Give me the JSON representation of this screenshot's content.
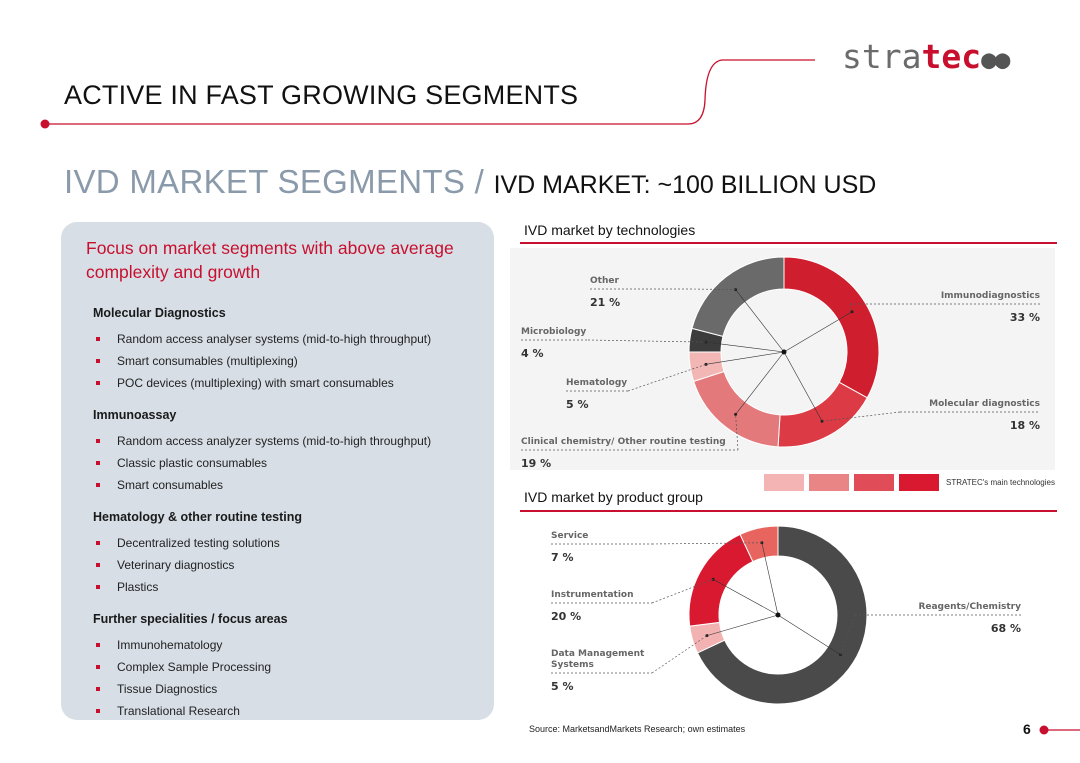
{
  "header": {
    "logo_main": "stra",
    "logo_accent": "tec",
    "logo_dots": "●●",
    "title": "ACTIVE IN FAST GROWING SEGMENTS"
  },
  "subtitle": {
    "part1": "IVD MARKET SEGMENTS / ",
    "part2": "IVD MARKET:  ~100 BILLION USD"
  },
  "panel": {
    "focus": "Focus on market segments with above average complexity and growth",
    "sections": [
      {
        "title": "Molecular Diagnostics",
        "items": [
          "Random access analyser systems (mid-to-high throughput)",
          "Smart consumables (multiplexing)",
          "POC devices (multiplexing) with smart consumables"
        ]
      },
      {
        "title": "Immunoassay",
        "items": [
          "Random access analyzer systems (mid-to-high throughput)",
          "Classic plastic consumables",
          "Smart consumables"
        ]
      },
      {
        "title": "Hematology & other routine testing",
        "items": [
          "Decentralized testing solutions",
          "Veterinary diagnostics",
          "Plastics"
        ]
      },
      {
        "title": "Further specialities / focus areas",
        "items": [
          "Immunohematology",
          "Complex Sample Processing",
          "Tissue Diagnostics",
          "Translational Research"
        ]
      }
    ]
  },
  "chart_data": [
    {
      "type": "pie",
      "title": "IVD market by technologies",
      "series": [
        {
          "name": "Immunodiagnostics",
          "value": 33,
          "label": "33 %",
          "color": "#cf1f2e"
        },
        {
          "name": "Molecular diagnostics",
          "value": 18,
          "label": "18 %",
          "color": "#dc3a44"
        },
        {
          "name": "Clinical chemistry/ Other routine testing",
          "value": 19,
          "label": "19 %",
          "color": "#e4797b"
        },
        {
          "name": "Hematology",
          "value": 5,
          "label": "5 %",
          "color": "#f2b6b5"
        },
        {
          "name": "Microbiology",
          "value": 4,
          "label": "4 %",
          "color": "#3c3c3c"
        },
        {
          "name": "Other",
          "value": 21,
          "label": "21 %",
          "color": "#6a6a6a"
        }
      ],
      "legend": {
        "colors": [
          "#f4b4b4",
          "#e98585",
          "#e04c58",
          "#d8192f"
        ],
        "label": "STRATEC's main technologies",
        "position": "bottom-right"
      }
    },
    {
      "type": "pie",
      "title": "IVD market by product group",
      "series": [
        {
          "name": "Reagents/Chemistry",
          "value": 68,
          "label": "68 %",
          "color": "#4a4a4a"
        },
        {
          "name": "Data Management Systems",
          "value": 5,
          "label": "5 %",
          "color": "#f2b2b2"
        },
        {
          "name": "Instrumentation",
          "value": 20,
          "label": "20 %",
          "color": "#d8192f"
        },
        {
          "name": "Service",
          "value": 7,
          "label": "7 %",
          "color": "#e8655f"
        }
      ]
    }
  ],
  "footer": {
    "source": "Source: MarketsandMarkets Research; own estimates",
    "page": "6"
  }
}
